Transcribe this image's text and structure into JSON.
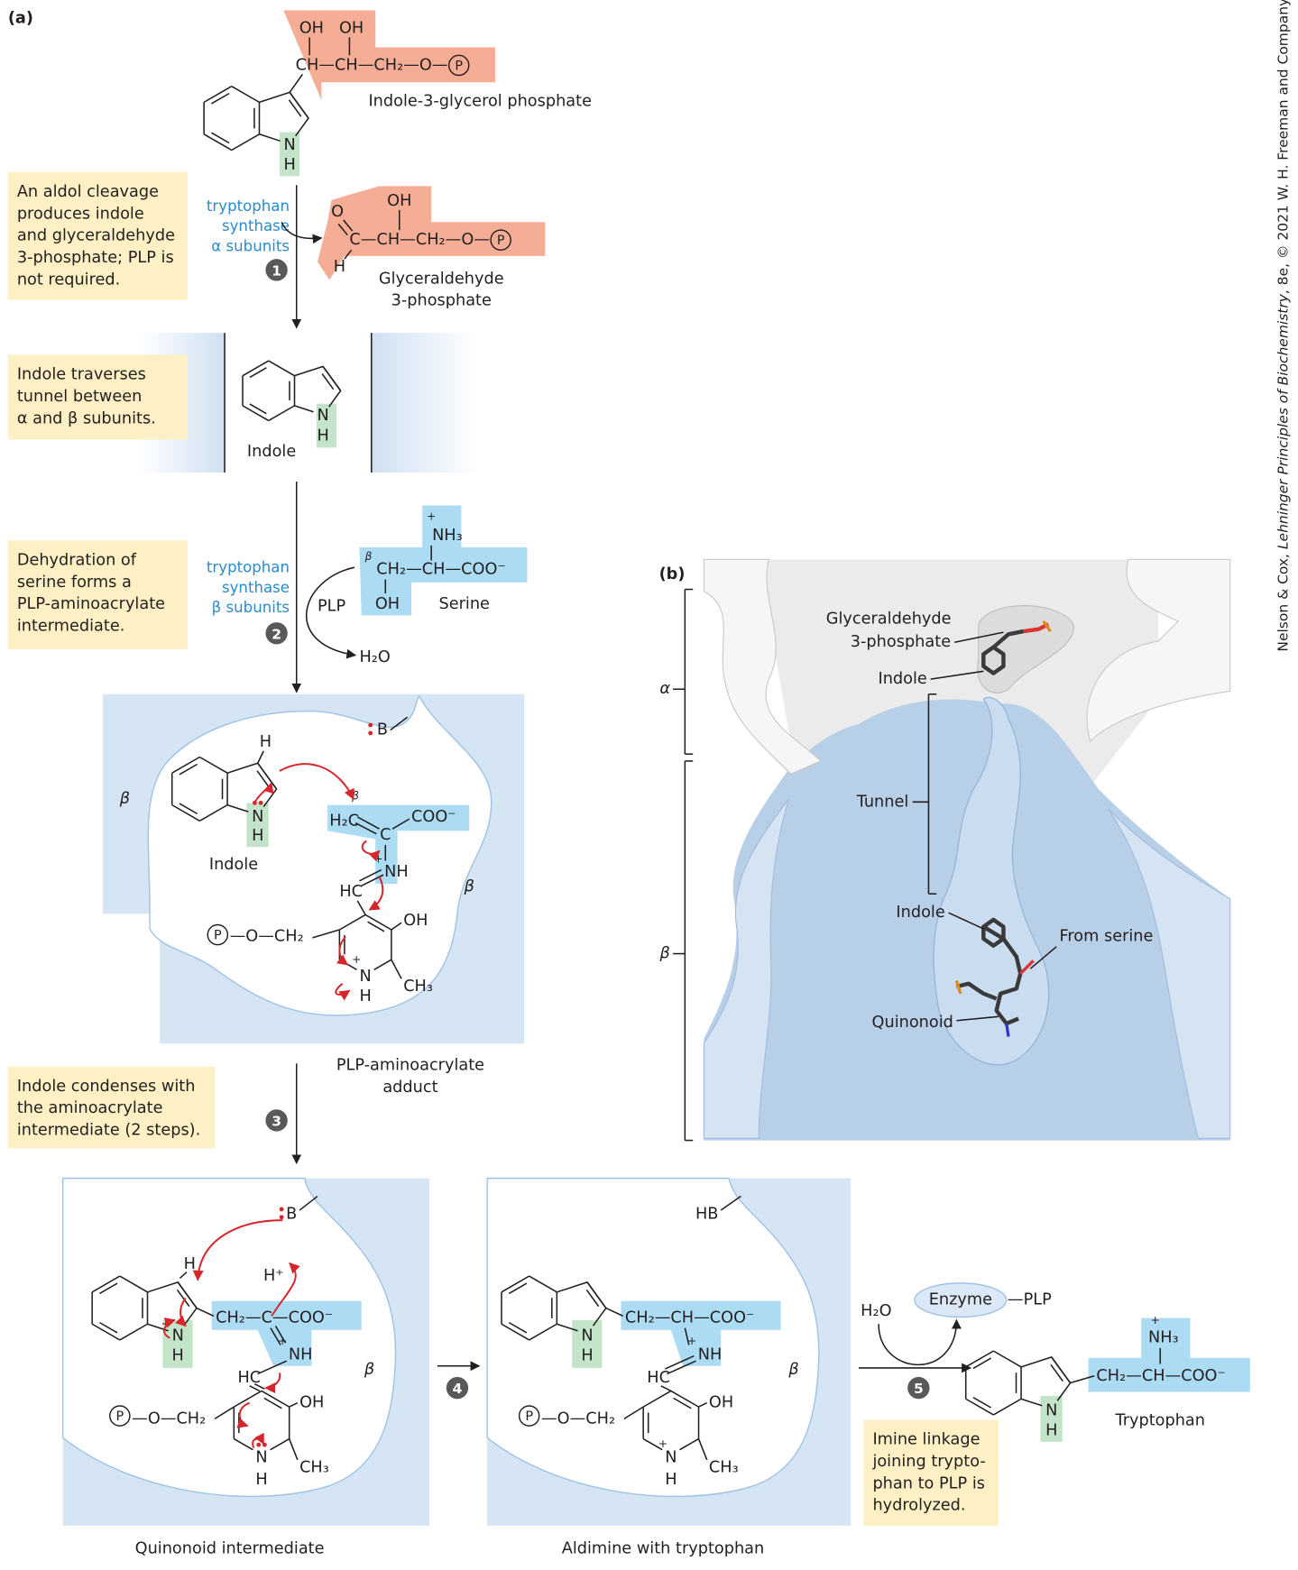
{
  "panel_a": {
    "label": "(a)",
    "notes": [
      [
        "An aldol cleavage",
        "produces indole",
        "and glyceraldehyde",
        "3-phosphate; PLP is",
        "not required."
      ],
      [
        "Indole traverses",
        "tunnel between",
        "α and β subunits."
      ],
      [
        "Dehydration of",
        "serine forms a",
        "PLP-aminoacrylate",
        "intermediate."
      ],
      [
        "Indole condenses with",
        "the aminoacrylate",
        "intermediate (2 steps)."
      ],
      [
        "Imine linkage",
        "joining trypto-",
        "phan to PLP is",
        "hydrolyzed."
      ]
    ],
    "enzymes": [
      [
        "tryptophan",
        "synthase",
        "α subunits"
      ],
      [
        "tryptophan",
        "synthase",
        "β subunits"
      ]
    ],
    "steps": [
      "1",
      "2",
      "3",
      "4",
      "5"
    ],
    "cofactor": "PLP",
    "water": [
      "H₂O",
      "H₂O"
    ],
    "enzyme_complex": [
      "Enzyme",
      "—PLP"
    ],
    "indole_3_glycerol_phosphate": {
      "name": "Indole-3-glycerol phosphate",
      "atoms": [
        "OH",
        "OH",
        "CH—CH—CH₂—O—",
        "P",
        "N",
        "H"
      ]
    },
    "glyceraldehyde_3_phosphate": {
      "name": [
        "Glyceraldehyde",
        "3-phosphate"
      ],
      "atoms": [
        "OH",
        "O",
        "C—CH—CH₂—O—",
        "P",
        "H"
      ]
    },
    "indole": {
      "name": "Indole",
      "atoms": [
        "N",
        "H"
      ]
    },
    "serine": {
      "name": "Serine",
      "atoms": [
        "+",
        "NH₃",
        "β",
        "CH₂—CH—COO⁻",
        "OH"
      ]
    },
    "aminoacrylate_adduct": {
      "name": [
        "PLP-aminoacrylate",
        "adduct"
      ],
      "regions": [
        "β",
        "β"
      ],
      "base": "B",
      "indole_label": "Indole",
      "atoms": [
        "H",
        "N",
        "H",
        "β",
        "H₂C",
        "C",
        "COO⁻",
        "+",
        "NH",
        "HC",
        "OH",
        "P",
        "—O—CH₂",
        "+",
        "N",
        "H",
        "CH₃"
      ]
    },
    "quinonoid_intermediate": {
      "name": "Quinonoid intermediate",
      "region": "β",
      "base": "B",
      "proton": "H⁺",
      "atoms": [
        "H",
        "+",
        "N",
        "H",
        "CH₂—C—COO⁻",
        "+",
        "NH",
        "HC",
        "OH",
        "P",
        "—O—CH₂",
        "N",
        "H",
        "CH₃"
      ]
    },
    "aldimine": {
      "name": "Aldimine with tryptophan",
      "region": "β",
      "base": "HB",
      "atoms": [
        "N",
        "H",
        "CH₂—CH—COO⁻",
        "+",
        "NH",
        "HC",
        "OH",
        "P",
        "—O—CH₂",
        "+",
        "N",
        "H",
        "CH₃"
      ]
    },
    "tryptophan": {
      "name": "Tryptophan",
      "atoms": [
        "N",
        "H",
        "CH₂—CH—COO⁻",
        "+",
        "NH₃"
      ]
    }
  },
  "panel_b": {
    "label": "(b)",
    "subunits": [
      "α",
      "β"
    ],
    "labels": [
      "Glyceraldehyde",
      "3-phosphate",
      "Indole",
      "Tunnel",
      "Indole",
      "From serine",
      "Quinonoid"
    ]
  },
  "credit": [
    "Nelson & Cox, ",
    "Lehninger Principles of Biochemistry",
    ", 8e, © 2021 W. H. Freeman and Company"
  ]
}
